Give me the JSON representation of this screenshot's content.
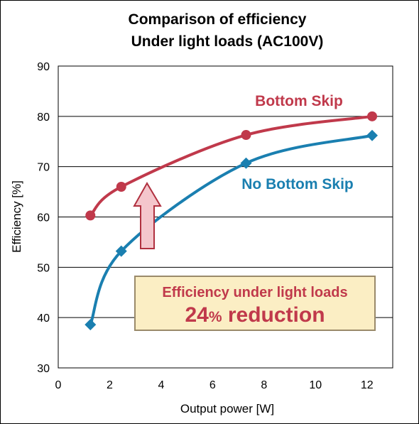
{
  "chart_data": {
    "type": "line",
    "title": [
      "Comparison of efficiency",
      "Under light loads  (AC100V)"
    ],
    "xlabel": "Output power  [W]",
    "ylabel": "Efficiency  [%]",
    "xlim": [
      0,
      13
    ],
    "ylim": [
      30,
      90
    ],
    "xticks": [
      "0",
      "2",
      "4",
      "6",
      "8",
      "10",
      "12"
    ],
    "yticks": [
      "30",
      "40",
      "50",
      "60",
      "70",
      "80",
      "90"
    ],
    "grid": "horizontal",
    "series": [
      {
        "name": "Bottom Skip",
        "color": "#c0394b",
        "marker": "circle",
        "points": [
          [
            1.25,
            60.3
          ],
          [
            2.45,
            66.0
          ],
          [
            7.3,
            76.3
          ],
          [
            12.2,
            80.0
          ]
        ]
      },
      {
        "name": "No Bottom Skip",
        "color": "#1a7fb0",
        "marker": "diamond",
        "points": [
          [
            1.25,
            38.6
          ],
          [
            2.45,
            53.2
          ],
          [
            7.3,
            70.7
          ],
          [
            12.2,
            76.2
          ]
        ]
      }
    ],
    "annotation": {
      "line1": "Efficiency under light loads",
      "value": "24",
      "unit": "%",
      "suffix": " reduction",
      "box_fill": "#fbeec4",
      "arrow_fill": "#f4c6cc"
    }
  }
}
